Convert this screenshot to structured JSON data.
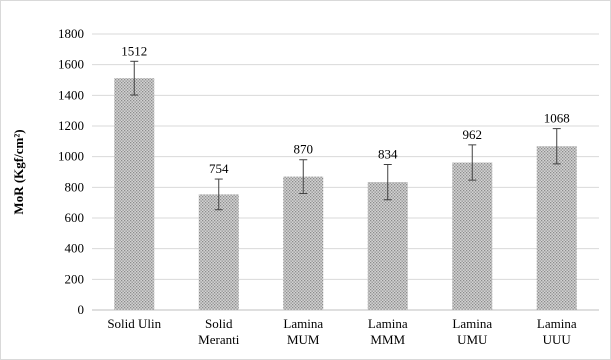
{
  "chart_data": {
    "type": "bar",
    "title": "",
    "xlabel": "",
    "ylabel": "MoR (Kgf/cm²)",
    "ylim": [
      0,
      1800
    ],
    "yticks": [
      0,
      200,
      400,
      600,
      800,
      1000,
      1200,
      1400,
      1600,
      1800
    ],
    "grid": "horizontal",
    "legend": "none",
    "categories": [
      [
        "Solid Ulin"
      ],
      [
        "Solid",
        "Meranti"
      ],
      [
        "Lamina",
        "MUM"
      ],
      [
        "Lamina",
        "MMM"
      ],
      [
        "Lamina",
        "UMU"
      ],
      [
        "Lamina",
        "UUU"
      ]
    ],
    "values": [
      1512,
      754,
      870,
      834,
      962,
      1068
    ],
    "data_labels": [
      "1512",
      "754",
      "870",
      "834",
      "962",
      "1068"
    ],
    "error": [
      110,
      100,
      110,
      115,
      115,
      115
    ],
    "colors": {
      "bar": "#c8c8c8",
      "bar_dot": "#8c8c8c",
      "grid": "#d9d9d9",
      "axis": "#bfbfbf",
      "error": "#404040"
    }
  }
}
